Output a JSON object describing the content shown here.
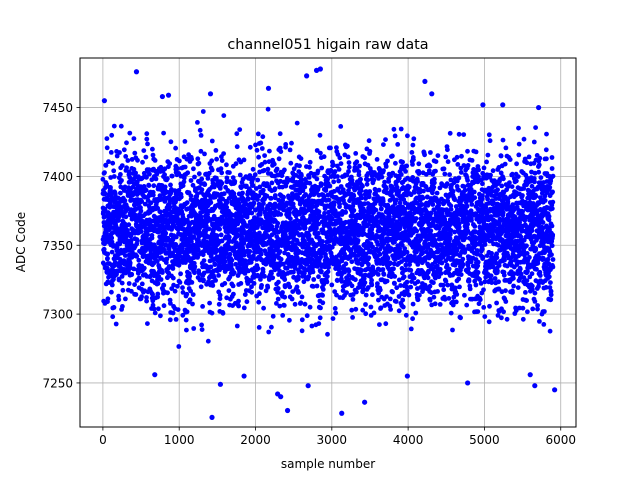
{
  "chart_data": {
    "type": "scatter",
    "title": "channel051 higain raw data",
    "xlabel": "sample number",
    "ylabel": "ADC Code",
    "xlim": [
      -300,
      6200
    ],
    "ylim": [
      7218,
      7486
    ],
    "xticks": [
      0,
      1000,
      2000,
      3000,
      4000,
      5000,
      6000
    ],
    "yticks": [
      7250,
      7300,
      7350,
      7400,
      7450
    ],
    "grid": true,
    "marker_color": "#0000ff",
    "n_samples": 5900,
    "bulk_range": [
      7300,
      7420
    ],
    "center": 7362,
    "outliers": [
      {
        "x": 20,
        "y": 7455
      },
      {
        "x": 440,
        "y": 7476
      },
      {
        "x": 780,
        "y": 7458
      },
      {
        "x": 860,
        "y": 7459
      },
      {
        "x": 1410,
        "y": 7460
      },
      {
        "x": 2170,
        "y": 7464
      },
      {
        "x": 2670,
        "y": 7473
      },
      {
        "x": 2800,
        "y": 7477
      },
      {
        "x": 2850,
        "y": 7478
      },
      {
        "x": 4220,
        "y": 7469
      },
      {
        "x": 4310,
        "y": 7460
      },
      {
        "x": 4980,
        "y": 7452
      },
      {
        "x": 5240,
        "y": 7452
      },
      {
        "x": 5710,
        "y": 7450
      },
      {
        "x": 1430,
        "y": 7225
      },
      {
        "x": 2290,
        "y": 7242
      },
      {
        "x": 2330,
        "y": 7240
      },
      {
        "x": 2420,
        "y": 7230
      },
      {
        "x": 2690,
        "y": 7248
      },
      {
        "x": 3130,
        "y": 7228
      },
      {
        "x": 3430,
        "y": 7236
      },
      {
        "x": 1540,
        "y": 7249
      },
      {
        "x": 5600,
        "y": 7256
      },
      {
        "x": 5660,
        "y": 7248
      },
      {
        "x": 5920,
        "y": 7245
      },
      {
        "x": 4780,
        "y": 7250
      },
      {
        "x": 3990,
        "y": 7255
      },
      {
        "x": 680,
        "y": 7256
      },
      {
        "x": 1850,
        "y": 7255
      }
    ]
  }
}
